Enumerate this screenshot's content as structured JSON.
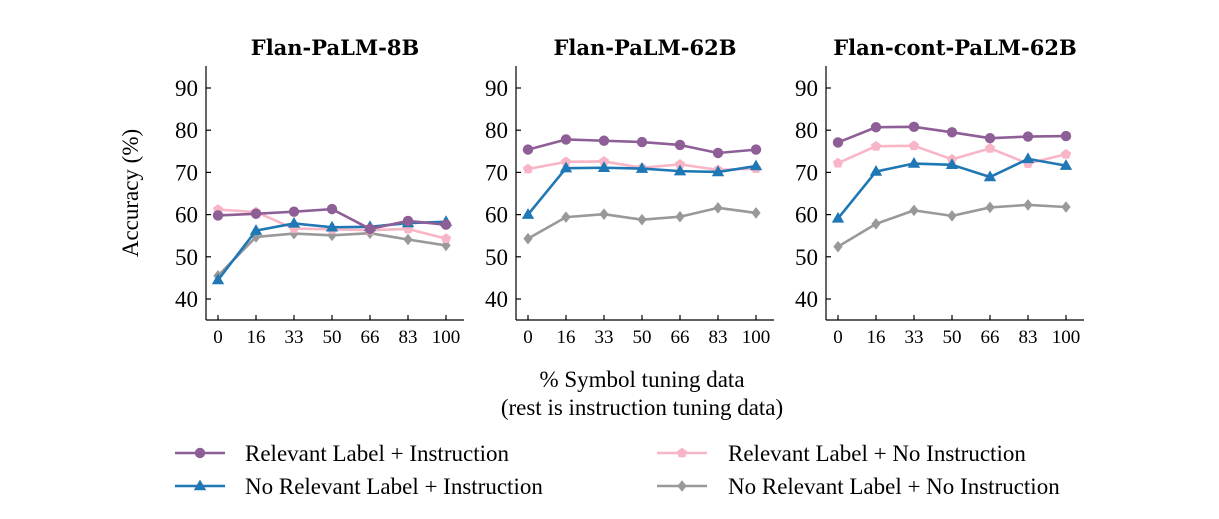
{
  "chart_data": {
    "type": "line",
    "xlabel": "% Symbol tuning data",
    "xlabel_line2": "(rest is instruction tuning data)",
    "ylabel": "Accuracy (%)",
    "ylim": [
      36,
      95
    ],
    "yticks": [
      40,
      50,
      60,
      70,
      80,
      90
    ],
    "x_categories": [
      "0",
      "16",
      "33",
      "50",
      "66",
      "83",
      "100"
    ],
    "grid": false,
    "legend_placement": "bottom",
    "legend": [
      {
        "name": "Relevant Label + Instruction",
        "color": "#8e5f96",
        "marker": "circle"
      },
      {
        "name": "Relevant Label + No Instruction",
        "color": "#f8b5c6",
        "marker": "pentagon"
      },
      {
        "name": "No Relevant Label + Instruction",
        "color": "#1f77b4",
        "marker": "triangle"
      },
      {
        "name": "No Relevant Label + No Instruction",
        "color": "#999999",
        "marker": "diamond"
      }
    ],
    "panels": [
      {
        "title": "Flan-PaLM-8B",
        "series": [
          {
            "name": "Relevant Label + Instruction",
            "values": [
              59.8,
              60.2,
              60.7,
              61.3,
              56.6,
              58.5,
              57.6
            ]
          },
          {
            "name": "Relevant Label + No Instruction",
            "values": [
              61.2,
              60.6,
              56.7,
              56.5,
              56.3,
              56.6,
              54.3
            ]
          },
          {
            "name": "No Relevant Label + Instruction",
            "values": [
              44.5,
              56.2,
              57.9,
              57.0,
              57.1,
              58.0,
              58.3
            ]
          },
          {
            "name": "No Relevant Label + No Instruction",
            "values": [
              45.5,
              54.7,
              55.5,
              55.1,
              55.6,
              54.1,
              52.7
            ]
          }
        ]
      },
      {
        "title": "Flan-PaLM-62B",
        "series": [
          {
            "name": "Relevant Label + Instruction",
            "values": [
              75.4,
              77.8,
              77.5,
              77.2,
              76.5,
              74.6,
              75.4
            ]
          },
          {
            "name": "Relevant Label + No Instruction",
            "values": [
              70.8,
              72.5,
              72.6,
              71.1,
              71.9,
              70.6,
              70.9
            ]
          },
          {
            "name": "No Relevant Label + Instruction",
            "values": [
              60.0,
              71.0,
              71.1,
              70.9,
              70.3,
              70.1,
              71.5
            ]
          },
          {
            "name": "No Relevant Label + No Instruction",
            "values": [
              54.3,
              59.4,
              60.1,
              58.8,
              59.5,
              61.6,
              60.4
            ]
          }
        ]
      },
      {
        "title": "Flan-cont-PaLM-62B",
        "series": [
          {
            "name": "Relevant Label + Instruction",
            "values": [
              77.1,
              80.7,
              80.8,
              79.5,
              78.1,
              78.5,
              78.6
            ]
          },
          {
            "name": "Relevant Label + No Instruction",
            "values": [
              72.2,
              76.2,
              76.3,
              73.1,
              75.7,
              72.1,
              74.3
            ]
          },
          {
            "name": "No Relevant Label + Instruction",
            "values": [
              59.1,
              70.2,
              72.1,
              71.8,
              68.9,
              73.2,
              71.6
            ]
          },
          {
            "name": "No Relevant Label + No Instruction",
            "values": [
              52.4,
              57.8,
              61.0,
              59.7,
              61.7,
              62.3,
              61.8
            ]
          }
        ]
      }
    ]
  }
}
